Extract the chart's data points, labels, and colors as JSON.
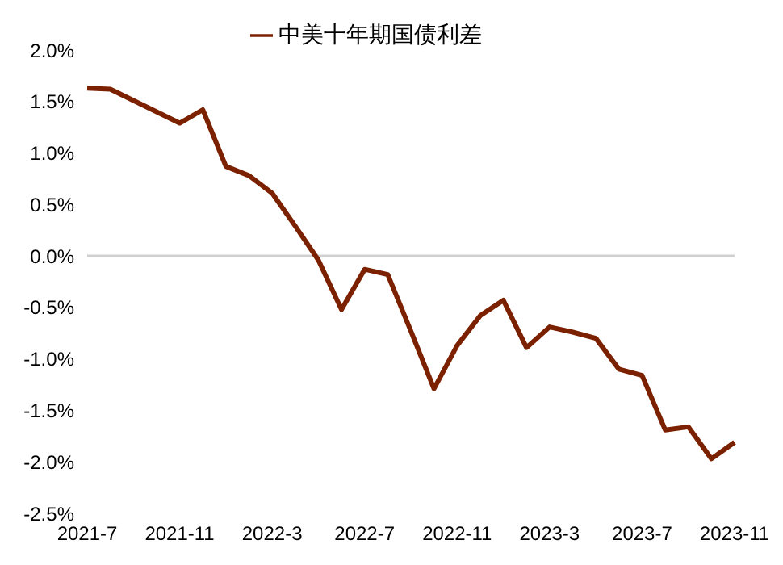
{
  "chart_data": {
    "type": "line",
    "legend": "top",
    "marker": "none",
    "line_style": "solid",
    "grid": false,
    "categories": [
      "2021-7",
      null,
      null,
      null,
      "2021-11",
      null,
      null,
      null,
      "2022-3",
      null,
      null,
      null,
      "2022-7",
      null,
      null,
      null,
      "2022-11",
      null,
      null,
      null,
      "2023-3",
      null,
      null,
      null,
      "2023-7",
      null,
      null,
      null,
      "2023-11"
    ],
    "series": [
      {
        "name": "中美十年期国债利差",
        "color": "#7b2100",
        "values": [
          1.63,
          1.62,
          1.51,
          1.4,
          1.29,
          1.42,
          0.87,
          0.78,
          0.61,
          0.29,
          -0.04,
          -0.52,
          -0.13,
          -0.18,
          -0.73,
          -1.29,
          -0.87,
          -0.58,
          -0.43,
          -0.89,
          -0.69,
          -0.74,
          -0.8,
          -1.1,
          -1.16,
          -1.69,
          -1.66,
          -1.97,
          -1.81
        ]
      }
    ],
    "ref_lines": [
      {
        "axis": "y",
        "value": 0,
        "color": "#d0d0d0"
      }
    ],
    "ylim": [
      -2.5,
      2.0
    ],
    "yticks": [
      {
        "value": -2.5,
        "label": "-2.5%"
      },
      {
        "value": -2.0,
        "label": "-2.0%"
      },
      {
        "value": -1.5,
        "label": "-1.5%"
      },
      {
        "value": -1.0,
        "label": "-1.0%"
      },
      {
        "value": -0.5,
        "label": "-0.5%"
      },
      {
        "value": 0,
        "label": "0.0%"
      },
      {
        "value": 0.5,
        "label": "0.5%"
      },
      {
        "value": 1.0,
        "label": "1.0%"
      },
      {
        "value": 1.5,
        "label": "1.5%"
      },
      {
        "value": 2.0,
        "label": "2.0%"
      }
    ]
  }
}
